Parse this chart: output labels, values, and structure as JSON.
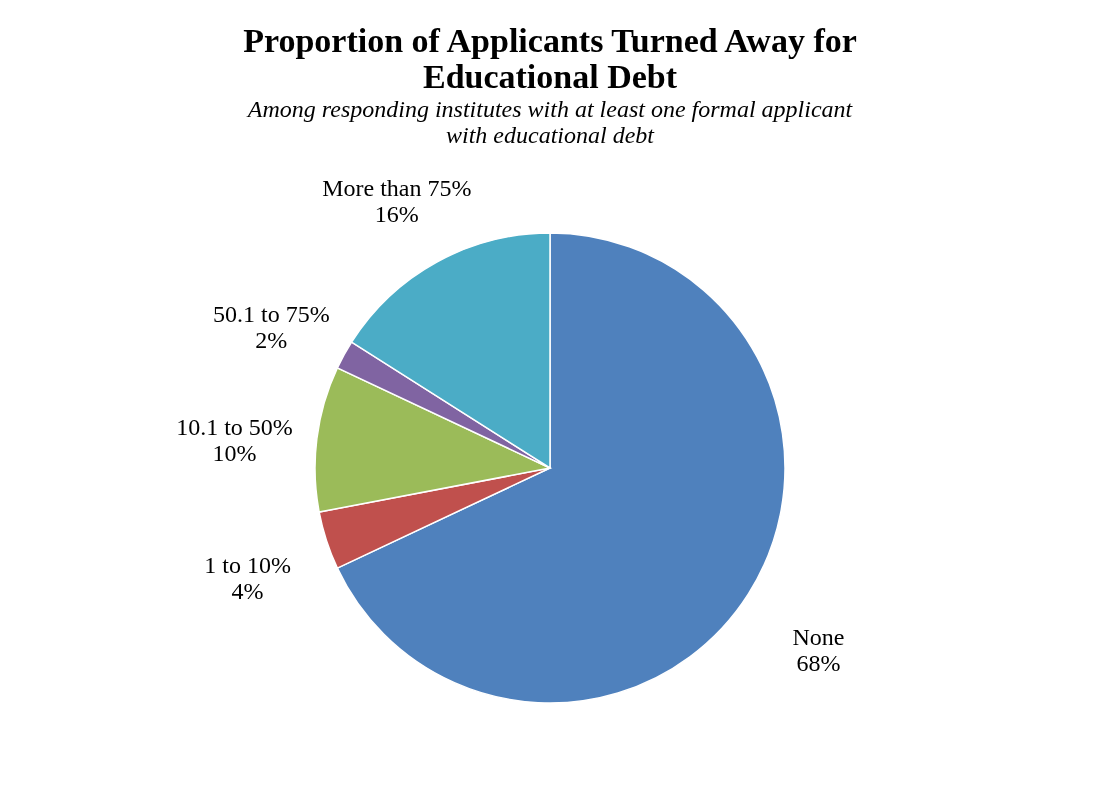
{
  "chart_data": {
    "type": "pie",
    "title": "Proportion of Applicants Turned Away for Educational Debt",
    "subtitle": "Among responding institutes with at least one formal applicant with educational debt",
    "categories": [
      "None",
      "1 to 10%",
      "10.1 to 50%",
      "50.1 to 75%",
      "More than 75%"
    ],
    "values": [
      68,
      4,
      10,
      2,
      16
    ],
    "value_labels": [
      "68%",
      "4%",
      "10%",
      "2%",
      "16%"
    ],
    "colors": [
      "#4f81bd",
      "#c0504d",
      "#9bbb59",
      "#8064a2",
      "#4bacc6"
    ],
    "legend": false
  }
}
